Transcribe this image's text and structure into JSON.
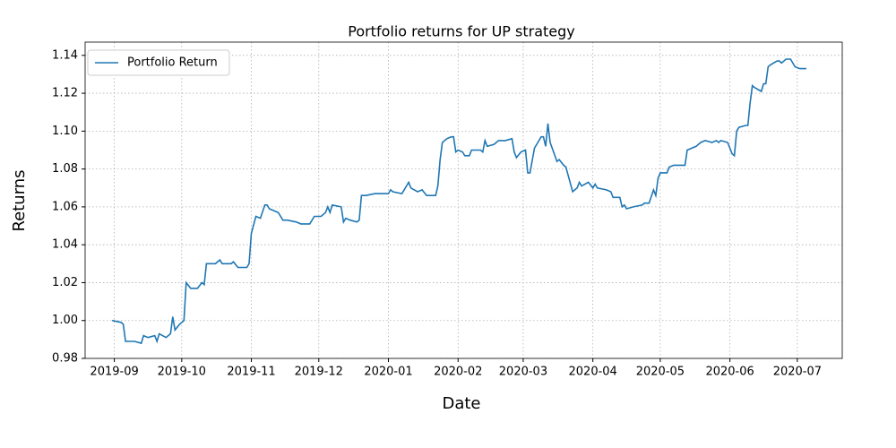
{
  "chart_data": {
    "type": "line",
    "title": "Portfolio returns for UP strategy",
    "x_label": "Date",
    "y_label": "Returns",
    "x": [
      -1,
      3,
      4,
      5,
      7,
      9,
      12,
      13,
      15,
      18,
      19,
      20,
      23,
      25,
      26,
      27,
      29,
      31,
      32,
      34,
      37,
      39,
      40,
      41,
      45,
      47,
      48,
      52,
      53,
      55,
      59,
      60,
      61,
      63,
      65,
      67,
      68,
      69,
      73,
      75,
      77,
      81,
      83,
      87,
      89,
      92,
      94,
      95,
      96,
      97,
      101,
      102,
      103,
      105,
      108,
      109,
      110,
      112,
      116,
      122,
      123,
      124,
      128,
      129,
      131,
      132,
      135,
      137,
      139,
      143,
      144,
      145,
      146,
      148,
      150,
      151,
      152,
      153,
      155,
      156,
      158,
      159,
      163,
      164,
      165,
      166,
      169,
      171,
      174,
      177,
      178,
      179,
      181,
      183,
      184,
      185,
      187,
      188,
      190,
      191,
      192,
      193,
      194,
      197,
      198,
      200,
      201,
      204,
      206,
      207,
      208,
      211,
      213,
      214,
      215,
      219,
      221,
      222,
      224,
      225,
      226,
      227,
      228,
      231,
      235,
      236,
      238,
      240,
      241,
      242,
      243,
      246,
      247,
      249,
      251,
      254,
      255,
      257,
      259,
      261,
      263,
      266,
      268,
      269,
      270,
      273,
      275,
      276,
      277,
      278,
      281,
      282,
      283,
      284,
      285,
      288,
      289,
      290,
      291,
      292,
      295,
      296,
      297,
      299,
      301,
      303,
      305,
      308
    ],
    "series": [
      {
        "name": "Portfolio Return",
        "color": "#1f77b4",
        "values": [
          1.0,
          0.999,
          0.998,
          0.989,
          0.989,
          0.989,
          0.988,
          0.992,
          0.991,
          0.992,
          0.989,
          0.993,
          0.991,
          0.993,
          1.002,
          0.995,
          0.998,
          1.0,
          1.02,
          1.017,
          1.017,
          1.02,
          1.019,
          1.03,
          1.03,
          1.032,
          1.03,
          1.03,
          1.031,
          1.028,
          1.028,
          1.03,
          1.046,
          1.055,
          1.054,
          1.061,
          1.061,
          1.059,
          1.057,
          1.053,
          1.053,
          1.052,
          1.051,
          1.051,
          1.055,
          1.055,
          1.057,
          1.06,
          1.057,
          1.061,
          1.06,
          1.052,
          1.054,
          1.053,
          1.052,
          1.053,
          1.066,
          1.066,
          1.067,
          1.067,
          1.069,
          1.068,
          1.067,
          1.069,
          1.073,
          1.07,
          1.068,
          1.069,
          1.066,
          1.066,
          1.071,
          1.085,
          1.094,
          1.096,
          1.097,
          1.097,
          1.089,
          1.09,
          1.089,
          1.087,
          1.087,
          1.09,
          1.09,
          1.089,
          1.095,
          1.092,
          1.093,
          1.095,
          1.095,
          1.096,
          1.089,
          1.086,
          1.089,
          1.09,
          1.078,
          1.078,
          1.091,
          1.093,
          1.097,
          1.097,
          1.092,
          1.104,
          1.094,
          1.084,
          1.085,
          1.082,
          1.081,
          1.068,
          1.07,
          1.073,
          1.071,
          1.073,
          1.07,
          1.072,
          1.07,
          1.069,
          1.068,
          1.065,
          1.065,
          1.065,
          1.06,
          1.061,
          1.059,
          1.06,
          1.061,
          1.062,
          1.062,
          1.069,
          1.066,
          1.075,
          1.078,
          1.078,
          1.081,
          1.082,
          1.082,
          1.082,
          1.09,
          1.091,
          1.092,
          1.094,
          1.095,
          1.094,
          1.095,
          1.094,
          1.095,
          1.094,
          1.088,
          1.087,
          1.1,
          1.102,
          1.103,
          1.103,
          1.115,
          1.124,
          1.123,
          1.121,
          1.125,
          1.125,
          1.134,
          1.135,
          1.137,
          1.137,
          1.136,
          1.138,
          1.138,
          1.134,
          1.133,
          1.133
        ]
      }
    ],
    "xlim": [
      -13,
      324
    ],
    "xticks": [
      {
        "value": 0,
        "label": "2019-09"
      },
      {
        "value": 30,
        "label": "2019-10"
      },
      {
        "value": 61,
        "label": "2019-11"
      },
      {
        "value": 91,
        "label": "2019-12"
      },
      {
        "value": 122,
        "label": "2020-01"
      },
      {
        "value": 153,
        "label": "2020-02"
      },
      {
        "value": 182,
        "label": "2020-03"
      },
      {
        "value": 213,
        "label": "2020-04"
      },
      {
        "value": 243,
        "label": "2020-05"
      },
      {
        "value": 274,
        "label": "2020-06"
      },
      {
        "value": 304,
        "label": "2020-07"
      }
    ],
    "ylim": [
      0.98,
      1.147
    ],
    "yticks": [
      {
        "value": 0.98,
        "label": "0.98"
      },
      {
        "value": 1.0,
        "label": "1.00"
      },
      {
        "value": 1.02,
        "label": "1.02"
      },
      {
        "value": 1.04,
        "label": "1.04"
      },
      {
        "value": 1.06,
        "label": "1.06"
      },
      {
        "value": 1.08,
        "label": "1.08"
      },
      {
        "value": 1.1,
        "label": "1.10"
      },
      {
        "value": 1.12,
        "label": "1.12"
      },
      {
        "value": 1.14,
        "label": "1.14"
      }
    ],
    "grid": true,
    "legend": "upper-left"
  }
}
